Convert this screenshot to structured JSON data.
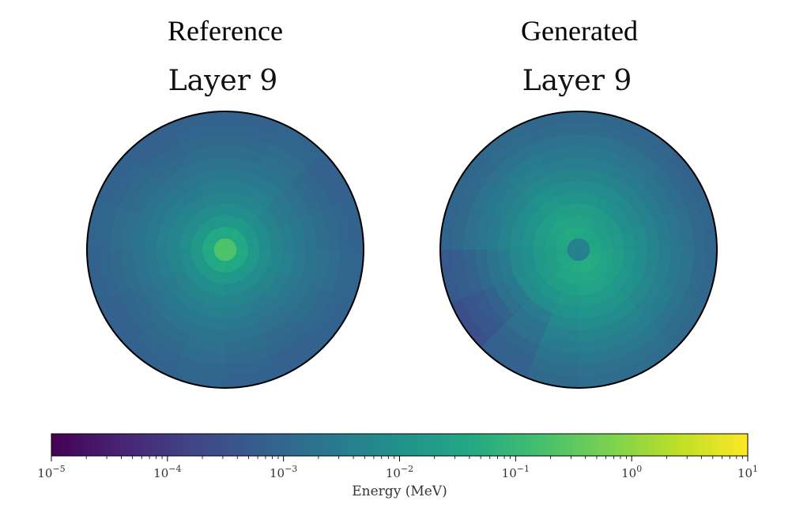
{
  "chart_data": [
    {
      "type": "heatmap",
      "projection": "polar",
      "column_title": "Reference",
      "title": "Layer 9",
      "color_scale": "viridis",
      "log_scale": true,
      "rings": [
        {
          "value": 0.2,
          "angular": [
            0.2,
            0.2,
            0.2,
            0.2,
            0.2,
            0.2,
            0.2,
            0.2,
            0.2,
            0.2,
            0.2,
            0.2,
            0.2,
            0.2,
            0.2,
            0.2
          ]
        },
        {
          "value": 0.04,
          "angular": [
            0.04,
            0.045,
            0.04,
            0.04,
            0.045,
            0.04,
            0.04,
            0.04,
            0.045,
            0.04,
            0.04,
            0.04,
            0.045,
            0.04,
            0.04,
            0.04
          ]
        },
        {
          "value": 0.015,
          "angular": [
            0.015,
            0.016,
            0.014,
            0.015,
            0.016,
            0.015,
            0.014,
            0.015,
            0.016,
            0.015,
            0.014,
            0.015,
            0.016,
            0.015,
            0.014,
            0.015
          ]
        },
        {
          "value": 0.008,
          "angular": [
            0.008,
            0.009,
            0.008,
            0.007,
            0.009,
            0.008,
            0.008,
            0.007,
            0.009,
            0.008,
            0.008,
            0.007,
            0.009,
            0.008,
            0.008,
            0.008
          ]
        },
        {
          "value": 0.005,
          "angular": [
            0.005,
            0.0055,
            0.0045,
            0.005,
            0.0055,
            0.005,
            0.0045,
            0.005,
            0.0055,
            0.005,
            0.0045,
            0.005,
            0.0055,
            0.005,
            0.0045,
            0.005
          ]
        },
        {
          "value": 0.0035,
          "angular": [
            0.0035,
            0.004,
            0.003,
            0.0035,
            0.004,
            0.0035,
            0.003,
            0.0035,
            0.004,
            0.0035,
            0.003,
            0.0035,
            0.004,
            0.0035,
            0.003,
            0.0035
          ]
        },
        {
          "value": 0.0025,
          "angular": [
            0.0025,
            0.0028,
            0.0022,
            0.0025,
            0.0028,
            0.0025,
            0.0022,
            0.0025,
            0.0028,
            0.0025,
            0.0022,
            0.0025,
            0.0028,
            0.0025,
            0.0022,
            0.0025
          ]
        },
        {
          "value": 0.0018,
          "angular": [
            0.0018,
            0.002,
            0.0016,
            0.0018,
            0.002,
            0.0018,
            0.0016,
            0.0018,
            0.002,
            0.0018,
            0.0016,
            0.0018,
            0.002,
            0.0018,
            0.0016,
            0.0018
          ]
        },
        {
          "value": 0.0014,
          "angular": [
            0.0014,
            0.0016,
            0.0012,
            0.0014,
            0.0016,
            0.0014,
            0.0012,
            0.0014,
            0.0016,
            0.0014,
            0.0012,
            0.0014,
            0.0016,
            0.0014,
            0.0012,
            0.0014
          ]
        },
        {
          "value": 0.0011,
          "angular": [
            0.0011,
            0.0013,
            0.001,
            0.0011,
            0.0013,
            0.0011,
            0.001,
            0.0011,
            0.0013,
            0.0011,
            0.001,
            0.0011,
            0.0013,
            0.0011,
            0.001,
            0.0011
          ]
        },
        {
          "value": 0.0009,
          "angular": [
            0.0009,
            0.001,
            0.0008,
            0.0009,
            0.001,
            0.0009,
            0.0008,
            0.0009,
            0.001,
            0.0009,
            0.0008,
            0.0009,
            0.001,
            0.0009,
            0.0008,
            0.0009
          ]
        },
        {
          "value": 0.0008,
          "angular": [
            0.0008,
            0.0009,
            0.0007,
            0.0008,
            0.0009,
            0.0008,
            0.0007,
            0.0008,
            0.0009,
            0.0008,
            0.0007,
            0.0008,
            0.0009,
            0.0008,
            0.0007,
            0.0008
          ]
        }
      ]
    },
    {
      "type": "heatmap",
      "projection": "polar",
      "column_title": "Generated",
      "title": "Layer 9",
      "color_scale": "viridis",
      "log_scale": true,
      "rings": [
        {
          "value": 0.004,
          "angular": [
            0.004,
            0.004,
            0.004,
            0.004,
            0.004,
            0.004,
            0.004,
            0.004,
            0.004,
            0.004,
            0.004,
            0.004,
            0.004,
            0.004,
            0.004,
            0.004
          ]
        },
        {
          "value": 0.04,
          "angular": [
            0.04,
            0.035,
            0.03,
            0.035,
            0.04,
            0.045,
            0.05,
            0.05,
            0.045,
            0.04,
            0.035,
            0.03,
            0.035,
            0.04,
            0.045,
            0.04
          ]
        },
        {
          "value": 0.03,
          "angular": [
            0.03,
            0.025,
            0.022,
            0.025,
            0.03,
            0.035,
            0.04,
            0.04,
            0.035,
            0.03,
            0.025,
            0.022,
            0.025,
            0.03,
            0.035,
            0.03
          ]
        },
        {
          "value": 0.02,
          "angular": [
            0.02,
            0.017,
            0.015,
            0.017,
            0.02,
            0.024,
            0.028,
            0.028,
            0.024,
            0.02,
            0.017,
            0.015,
            0.017,
            0.02,
            0.024,
            0.02
          ]
        },
        {
          "value": 0.012,
          "angular": [
            0.012,
            0.01,
            0.009,
            0.01,
            0.012,
            0.015,
            0.018,
            0.018,
            0.015,
            0.012,
            0.01,
            0.009,
            0.01,
            0.012,
            0.015,
            0.012
          ]
        },
        {
          "value": 0.008,
          "angular": [
            0.008,
            0.007,
            0.006,
            0.007,
            0.008,
            0.01,
            0.012,
            0.012,
            0.01,
            0.008,
            0.007,
            0.006,
            0.007,
            0.008,
            0.01,
            0.008
          ]
        },
        {
          "value": 0.005,
          "angular": [
            0.005,
            0.0045,
            0.004,
            0.0045,
            0.005,
            0.006,
            0.008,
            0.008,
            0.006,
            0.003,
            0.0025,
            0.003,
            0.0045,
            0.005,
            0.006,
            0.005
          ]
        },
        {
          "value": 0.0035,
          "angular": [
            0.0035,
            0.003,
            0.0028,
            0.003,
            0.0035,
            0.004,
            0.005,
            0.005,
            0.004,
            0.002,
            0.0015,
            0.002,
            0.003,
            0.0035,
            0.004,
            0.0035
          ]
        },
        {
          "value": 0.0025,
          "angular": [
            0.0025,
            0.0022,
            0.002,
            0.0022,
            0.0025,
            0.003,
            0.0035,
            0.0035,
            0.003,
            0.0015,
            0.0008,
            0.0012,
            0.0022,
            0.0025,
            0.003,
            0.0025
          ]
        },
        {
          "value": 0.0018,
          "angular": [
            0.0018,
            0.0016,
            0.0014,
            0.0016,
            0.0018,
            0.002,
            0.0025,
            0.0025,
            0.002,
            0.001,
            0.0005,
            0.0008,
            0.0016,
            0.0018,
            0.002,
            0.0018
          ]
        },
        {
          "value": 0.0012,
          "angular": [
            0.0012,
            0.0011,
            0.001,
            0.0011,
            0.0012,
            0.0014,
            0.0016,
            0.0016,
            0.0014,
            0.0008,
            0.0004,
            0.0006,
            0.0011,
            0.0012,
            0.0014,
            0.0012
          ]
        },
        {
          "value": 0.001,
          "angular": [
            0.001,
            0.0009,
            0.0008,
            0.0009,
            0.001,
            0.0011,
            0.0013,
            0.0013,
            0.0011,
            0.0007,
            0.0003,
            0.0005,
            0.0009,
            0.001,
            0.0011,
            0.001
          ]
        }
      ]
    }
  ],
  "colorbar": {
    "label": "Energy (MeV)",
    "range": [
      1e-05,
      10
    ],
    "ticks": [
      {
        "base": "10",
        "exp": "−5"
      },
      {
        "base": "10",
        "exp": "−4"
      },
      {
        "base": "10",
        "exp": "−3"
      },
      {
        "base": "10",
        "exp": "−2"
      },
      {
        "base": "10",
        "exp": "−1"
      },
      {
        "base": "10",
        "exp": "0"
      },
      {
        "base": "10",
        "exp": "1"
      }
    ],
    "colormap": [
      "#440154",
      "#482475",
      "#414487",
      "#355f8d",
      "#2a788e",
      "#21918c",
      "#22a884",
      "#44bf70",
      "#7ad151",
      "#bddf26",
      "#fde725"
    ]
  }
}
